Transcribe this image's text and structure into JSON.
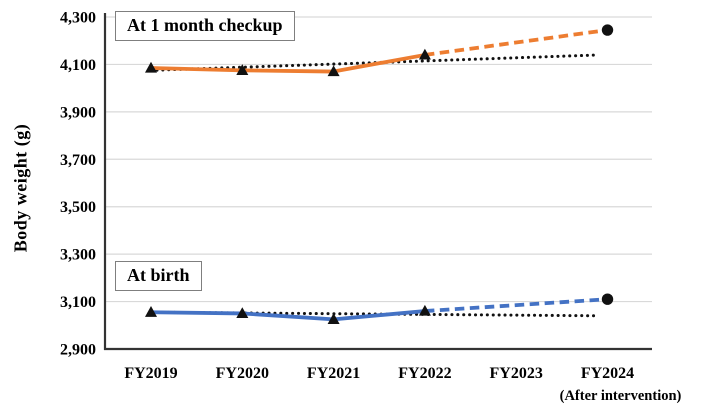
{
  "chart_data": {
    "type": "line",
    "title": "",
    "ylabel": "Body weight (g)",
    "categories": [
      "FY2019",
      "FY2020",
      "FY2021",
      "FY2022",
      "FY2023",
      "FY2024"
    ],
    "x_axis_note": "(After intervention)",
    "x_axis_note_under": "FY2024",
    "ylim": [
      2900,
      4300
    ],
    "grid": "horizontal",
    "ytick_values": [
      4300,
      4100,
      3900,
      3700,
      3500,
      3300,
      3100,
      2900
    ],
    "ytick_labels": [
      "4,300",
      "4,100",
      "3,900",
      "3,700",
      "3,500",
      "3,300",
      "3,100",
      "2,900"
    ],
    "series": [
      {
        "name": "At 1 month checkup",
        "color": "#ED7D31",
        "marker": "triangle",
        "marker_color": "#111111",
        "projected_marker": "circle",
        "actual_values": [
          4085,
          4075,
          4070,
          4140,
          null,
          null
        ],
        "projected_values": [
          null,
          null,
          null,
          4140,
          null,
          4245
        ]
      },
      {
        "name": "At birth",
        "color": "#4472C4",
        "marker": "triangle",
        "marker_color": "#111111",
        "projected_marker": "circle",
        "actual_values": [
          3055,
          3050,
          3025,
          3060,
          null,
          null
        ],
        "projected_values": [
          null,
          null,
          null,
          3060,
          null,
          3110
        ]
      }
    ],
    "trendlines": [
      {
        "series": "At 1 month checkup",
        "style": "dotted",
        "color": "#111111",
        "from_value": 4075,
        "to_value": 4140
      },
      {
        "series": "At birth",
        "style": "dotted",
        "color": "#111111",
        "from_value": 3055,
        "to_value": 3040
      }
    ],
    "annotations": {
      "checkup_label": "At 1 month checkup",
      "birth_label": "At birth"
    },
    "colors": {
      "gridline": "#D9D9D9",
      "axis": "#333333",
      "text": "#000000"
    }
  }
}
